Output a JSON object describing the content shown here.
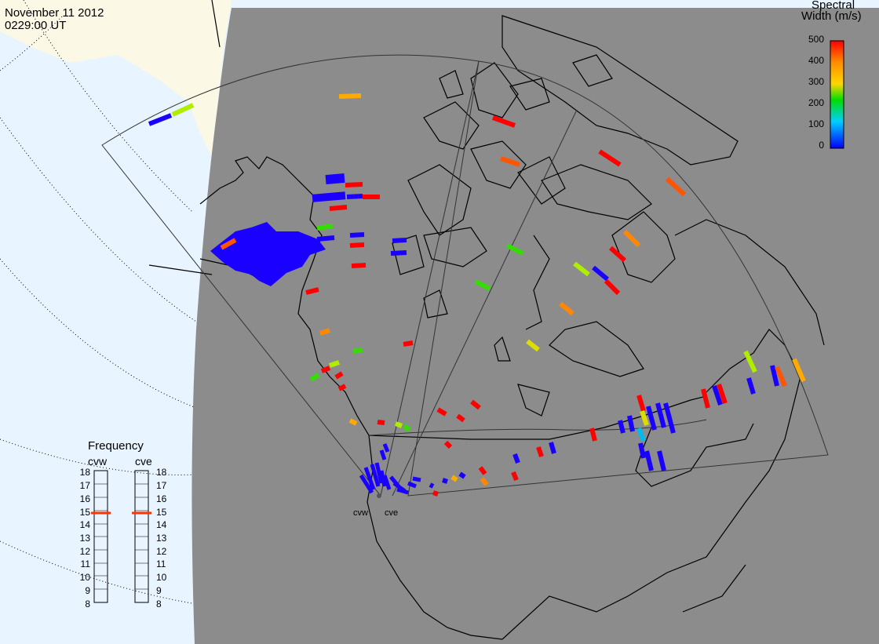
{
  "header": {
    "date": "November 11 2012",
    "time": "0229:00 UT"
  },
  "colorbar": {
    "title_line1": "Spectral",
    "title_line2": "Width (m/s)",
    "ticks": [
      "500",
      "400",
      "300",
      "200",
      "100",
      "0"
    ],
    "colors": [
      "#ff0000",
      "#ff8c00",
      "#ffd700",
      "#00dd00",
      "#00d0ff",
      "#0000ff"
    ]
  },
  "frequency_panel": {
    "title": "Frequency",
    "radar_left": "cvw",
    "radar_right": "cve",
    "ticks": [
      "18",
      "17",
      "16",
      "15",
      "14",
      "13",
      "12",
      "11",
      "10",
      "9",
      "8"
    ],
    "cvw_value": 15,
    "cve_value": 15
  },
  "radars": [
    {
      "name": "cvw"
    },
    {
      "name": "cve"
    }
  ],
  "colors": {
    "night_shade": "#8c8c8c",
    "day_ocean": "#e8f4ff",
    "day_land": "#fbf8e6",
    "scatter_main": "#1a00ff",
    "red": "#ff0000",
    "orange": "#ff8800",
    "yellow": "#dddd00",
    "green": "#33dd00",
    "cyan": "#00bbee"
  }
}
